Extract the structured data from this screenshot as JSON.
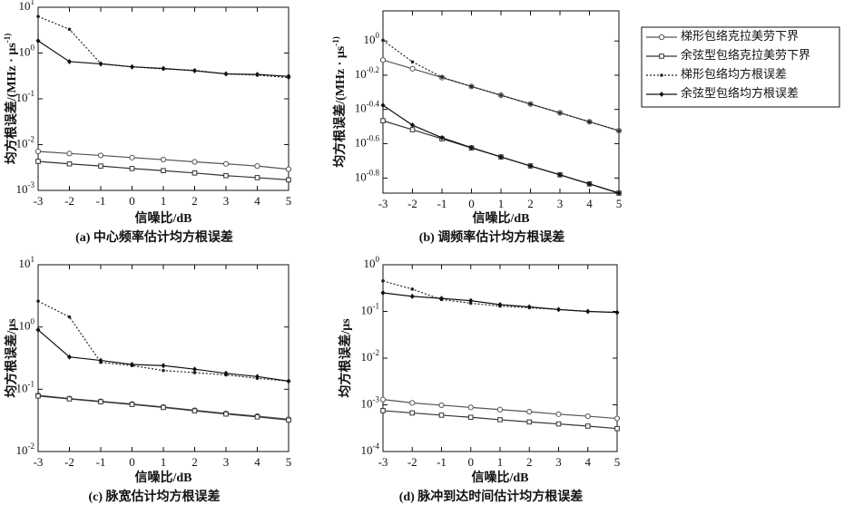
{
  "legend": {
    "entries": [
      {
        "name": "梯形包络克拉美劳下界",
        "color": "#555555",
        "dash": "none",
        "marker": "circle"
      },
      {
        "name": "余弦型包络克拉美劳下界",
        "color": "#333333",
        "dash": "none",
        "marker": "square"
      },
      {
        "name": "梯形包络均方根误差",
        "color": "#222222",
        "dash": "2,2",
        "marker": "dot"
      },
      {
        "name": "余弦型包络均方根误差",
        "color": "#111111",
        "dash": "none",
        "marker": "star"
      }
    ]
  },
  "chart_data": [
    {
      "type": "line",
      "caption": "(a) 中心频率估计均方根误差",
      "xlabel": "信噪比/dB",
      "ylabel": "均方根误差/(MHz · μs^-1)",
      "log_y": true,
      "x": [
        -3,
        -2,
        -1,
        0,
        1,
        2,
        3,
        4,
        5
      ],
      "xlim": [
        -3,
        5
      ],
      "xticks": [
        -3,
        -2,
        -1,
        0,
        1,
        2,
        3,
        4,
        5
      ],
      "ylim": [
        0.001,
        10
      ],
      "yticks": [
        {
          "value": 10,
          "label": "10^1"
        },
        {
          "value": 1,
          "label": "10^0"
        },
        {
          "value": 0.1,
          "label": "10^-1"
        },
        {
          "value": 0.01,
          "label": "10^-2"
        },
        {
          "value": 0.001,
          "label": "10^-3"
        }
      ],
      "series": [
        {
          "values": [
            0.0071,
            0.0064,
            0.0058,
            0.0052,
            0.0047,
            0.0042,
            0.0038,
            0.0034,
            0.0029
          ]
        },
        {
          "values": [
            0.0043,
            0.0038,
            0.0034,
            0.003,
            0.0027,
            0.0024,
            0.0021,
            0.0019,
            0.0017
          ]
        },
        {
          "values": [
            6.3,
            3.3,
            0.59,
            0.5,
            0.45,
            0.42,
            0.35,
            0.33,
            0.29
          ]
        },
        {
          "values": [
            1.85,
            0.65,
            0.58,
            0.5,
            0.46,
            0.41,
            0.35,
            0.34,
            0.31
          ]
        }
      ]
    },
    {
      "type": "line",
      "caption": "(b) 调频率估计均方根误差",
      "xlabel": "信噪比/dB",
      "ylabel": "均方根误差/(MHz · μs^-1)",
      "log_y": true,
      "x": [
        -3,
        -2,
        -1,
        0,
        1,
        2,
        3,
        4,
        5
      ],
      "xlim": [
        -3,
        5
      ],
      "xticks": [
        -3,
        -2,
        -1,
        0,
        1,
        2,
        3,
        4,
        5
      ],
      "ylim": [
        0.129,
        1.5
      ],
      "yticks": [
        {
          "value": 1,
          "label": "10^0"
        },
        {
          "value": 0.631,
          "label": "10^-0.2"
        },
        {
          "value": 0.398,
          "label": "10^-0.4"
        },
        {
          "value": 0.251,
          "label": "10^-0.6"
        },
        {
          "value": 0.158,
          "label": "10^-0.8"
        }
      ],
      "series": [
        {
          "values": [
            0.774,
            0.688,
            0.611,
            0.542,
            0.482,
            0.428,
            0.38,
            0.337,
            0.299
          ]
        },
        {
          "values": [
            0.342,
            0.303,
            0.268,
            0.237,
            0.21,
            0.186,
            0.165,
            0.146,
            0.129
          ]
        },
        {
          "values": [
            1.01,
            0.755,
            0.614,
            0.542,
            0.482,
            0.428,
            0.38,
            0.337,
            0.299
          ]
        },
        {
          "values": [
            0.421,
            0.322,
            0.272,
            0.238,
            0.21,
            0.186,
            0.165,
            0.146,
            0.129
          ]
        }
      ]
    },
    {
      "type": "line",
      "caption": "(c) 脉宽估计均方根误差",
      "xlabel": "信噪比/dB",
      "ylabel": "均方根误差/μs",
      "log_y": true,
      "x": [
        -3,
        -2,
        -1,
        0,
        1,
        2,
        3,
        4,
        5
      ],
      "xlim": [
        -3,
        5
      ],
      "xticks": [
        -3,
        -2,
        -1,
        0,
        1,
        2,
        3,
        4,
        5
      ],
      "ylim": [
        0.01,
        10
      ],
      "yticks": [
        {
          "value": 10,
          "label": "10^1"
        },
        {
          "value": 1,
          "label": "10^0"
        },
        {
          "value": 0.1,
          "label": "10^-1"
        },
        {
          "value": 0.01,
          "label": "10^-2"
        }
      ],
      "series": [
        {
          "values": [
            0.08,
            0.071,
            0.064,
            0.058,
            0.052,
            0.046,
            0.041,
            0.037,
            0.033
          ]
        },
        {
          "values": [
            0.078,
            0.07,
            0.063,
            0.057,
            0.051,
            0.045,
            0.04,
            0.036,
            0.032
          ]
        },
        {
          "values": [
            2.6,
            1.45,
            0.27,
            0.24,
            0.2,
            0.185,
            0.17,
            0.15,
            0.135
          ]
        },
        {
          "values": [
            0.9,
            0.33,
            0.29,
            0.25,
            0.24,
            0.21,
            0.18,
            0.16,
            0.135
          ]
        }
      ]
    },
    {
      "type": "line",
      "caption": "(d) 脉冲到达时间估计均方根误差",
      "xlabel": "信噪比/dB",
      "ylabel": "均方根误差/μs",
      "log_y": true,
      "x": [
        -3,
        -2,
        -1,
        0,
        1,
        2,
        3,
        4,
        5
      ],
      "xlim": [
        -3,
        5
      ],
      "xticks": [
        -3,
        -2,
        -1,
        0,
        1,
        2,
        3,
        4,
        5
      ],
      "ylim": [
        0.0001,
        1
      ],
      "yticks": [
        {
          "value": 1,
          "label": "10^0"
        },
        {
          "value": 0.1,
          "label": "10^-1"
        },
        {
          "value": 0.01,
          "label": "10^-2"
        },
        {
          "value": 0.001,
          "label": "10^-3"
        },
        {
          "value": 0.0001,
          "label": "10^-4"
        }
      ],
      "series": [
        {
          "values": [
            0.0013,
            0.0011,
            0.00098,
            0.00088,
            0.00079,
            0.00071,
            0.00063,
            0.00057,
            0.00051
          ]
        },
        {
          "values": [
            0.00075,
            0.00067,
            0.0006,
            0.00054,
            0.00048,
            0.00043,
            0.00039,
            0.00035,
            0.00031
          ]
        },
        {
          "values": [
            0.45,
            0.3,
            0.18,
            0.15,
            0.13,
            0.12,
            0.11,
            0.1,
            0.095
          ]
        },
        {
          "values": [
            0.25,
            0.21,
            0.19,
            0.17,
            0.14,
            0.125,
            0.11,
            0.1,
            0.095
          ]
        }
      ]
    }
  ]
}
